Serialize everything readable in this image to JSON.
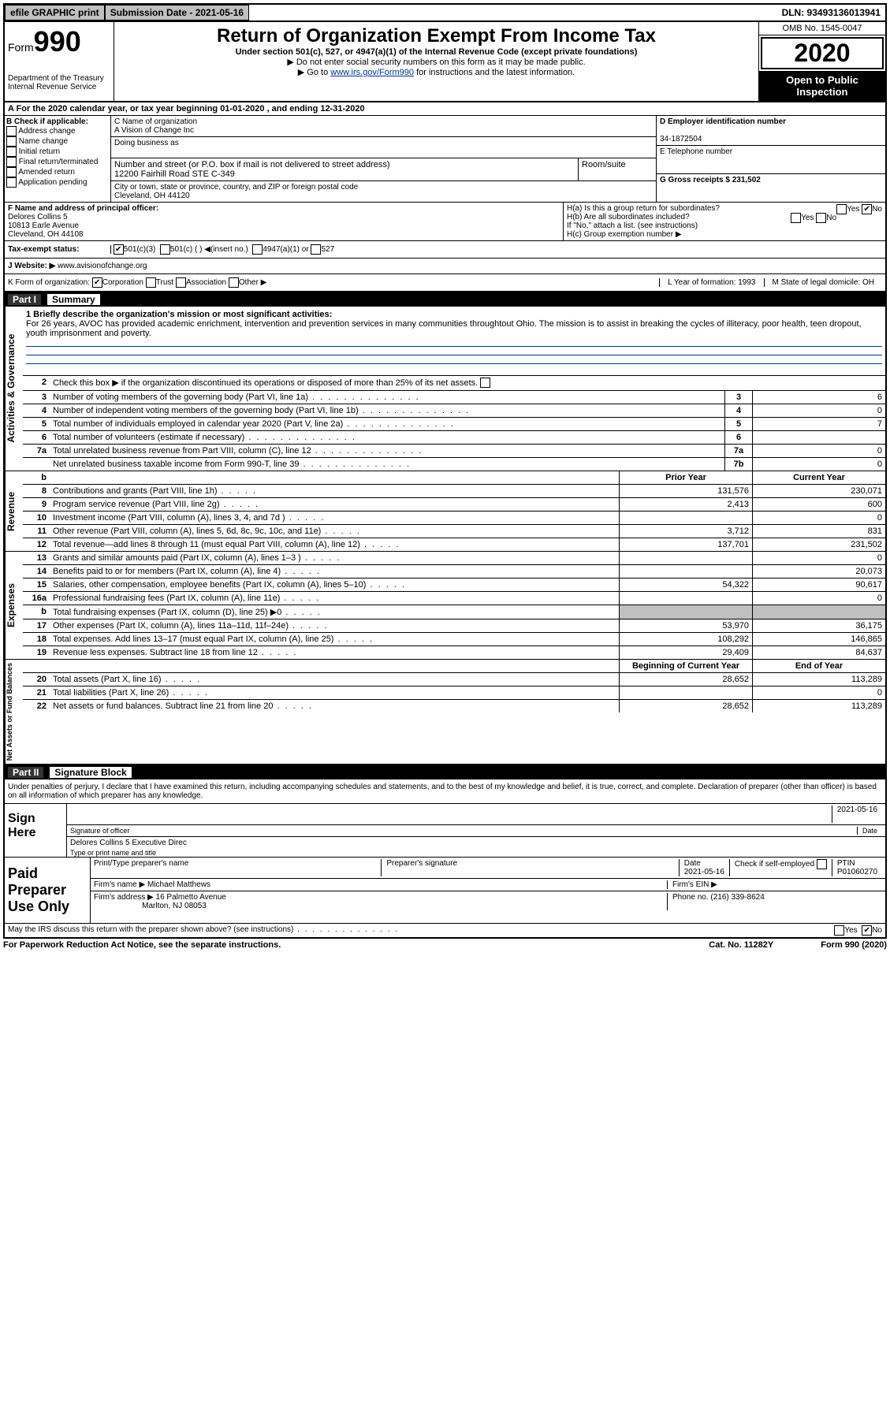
{
  "topbar": {
    "efile": "efile GRAPHIC print",
    "submission_label": "Submission Date - 2021-05-16",
    "dln": "DLN: 93493136013941"
  },
  "header": {
    "form_prefix": "Form",
    "form_number": "990",
    "dept": "Department of the Treasury",
    "irs": "Internal Revenue Service",
    "title": "Return of Organization Exempt From Income Tax",
    "subtitle": "Under section 501(c), 527, or 4947(a)(1) of the Internal Revenue Code (except private foundations)",
    "note1": "▶ Do not enter social security numbers on this form as it may be made public.",
    "note2_prefix": "▶ Go to ",
    "note2_link": "www.irs.gov/Form990",
    "note2_suffix": " for instructions and the latest information.",
    "omb": "OMB No. 1545-0047",
    "year": "2020",
    "inspect": "Open to Public Inspection"
  },
  "line_a": "A For the 2020 calendar year, or tax year beginning 01-01-2020    , and ending 12-31-2020",
  "box_b": {
    "header": "B Check if applicable:",
    "opts": [
      "Address change",
      "Name change",
      "Initial return",
      "Final return/terminated",
      "Amended return",
      "Application pending"
    ]
  },
  "box_c": {
    "name_label": "C Name of organization",
    "name": "A Vision of Change Inc",
    "dba_label": "Doing business as",
    "addr_label": "Number and street (or P.O. box if mail is not delivered to street address)",
    "room_label": "Room/suite",
    "addr": "12200 Fairhill Road STE C-349",
    "city_label": "City or town, state or province, country, and ZIP or foreign postal code",
    "city": "Cleveland, OH  44120"
  },
  "box_d": {
    "ein_label": "D Employer identification number",
    "ein": "34-1872504",
    "phone_label": "E Telephone number",
    "gross_label": "G Gross receipts $ 231,502"
  },
  "box_f": {
    "label": "F  Name and address of principal officer:",
    "name": "Delores Collins 5",
    "addr1": "10813 Earle Avenue",
    "addr2": "Cleveland, OH  44108"
  },
  "box_h": {
    "ha": "H(a)  Is this a group return for subordinates?",
    "hb": "H(b)  Are all subordinates included?",
    "hnote": "If \"No,\" attach a list. (see instructions)",
    "hc": "H(c)  Group exemption number ▶"
  },
  "tax_status": {
    "label": "Tax-exempt status:",
    "o1": "501(c)(3)",
    "o2": "501(c) (  ) ◀(insert no.)",
    "o3": "4947(a)(1) or",
    "o4": "527"
  },
  "website": {
    "label": "J Website: ▶",
    "value": "www.avisionofchange.org"
  },
  "kline": {
    "label": "K Form of organization:",
    "opts": [
      "Corporation",
      "Trust",
      "Association",
      "Other ▶"
    ],
    "l": "L Year of formation: 1993",
    "m": "M State of legal domicile: OH"
  },
  "part1": {
    "header_part": "Part I",
    "header_title": "Summary",
    "mission_label": "1  Briefly describe the organization's mission or most significant activities:",
    "mission": "For 26 years, AVOC has provided academic enrichment, intervention and prevention services in many communities throughtout Ohio. The mission is to assist in breaking the cycles of illiteracy, poor health, teen dropout, youth imprisonment and poverty.",
    "line2": "Check this box ▶       if the organization discontinued its operations or disposed of more than 25% of its net assets.",
    "vtabs": {
      "gov": "Activities & Governance",
      "rev": "Revenue",
      "exp": "Expenses",
      "net": "Net Assets or Fund Balances"
    },
    "rows_gov": [
      {
        "n": "3",
        "d": "Number of voting members of the governing body (Part VI, line 1a)",
        "b": "3",
        "v": "6"
      },
      {
        "n": "4",
        "d": "Number of independent voting members of the governing body (Part VI, line 1b)",
        "b": "4",
        "v": "0"
      },
      {
        "n": "5",
        "d": "Total number of individuals employed in calendar year 2020 (Part V, line 2a)",
        "b": "5",
        "v": "7"
      },
      {
        "n": "6",
        "d": "Total number of volunteers (estimate if necessary)",
        "b": "6",
        "v": ""
      },
      {
        "n": "7a",
        "d": "Total unrelated business revenue from Part VIII, column (C), line 12",
        "b": "7a",
        "v": "0"
      },
      {
        "n": "",
        "d": "Net unrelated business taxable income from Form 990-T, line 39",
        "b": "7b",
        "v": "0"
      }
    ],
    "col_headers": {
      "py": "Prior Year",
      "cy": "Current Year"
    },
    "rows_rev": [
      {
        "n": "8",
        "d": "Contributions and grants (Part VIII, line 1h)",
        "py": "131,576",
        "cy": "230,071"
      },
      {
        "n": "9",
        "d": "Program service revenue (Part VIII, line 2g)",
        "py": "2,413",
        "cy": "600"
      },
      {
        "n": "10",
        "d": "Investment income (Part VIII, column (A), lines 3, 4, and 7d )",
        "py": "",
        "cy": "0"
      },
      {
        "n": "11",
        "d": "Other revenue (Part VIII, column (A), lines 5, 6d, 8c, 9c, 10c, and 11e)",
        "py": "3,712",
        "cy": "831"
      },
      {
        "n": "12",
        "d": "Total revenue—add lines 8 through 11 (must equal Part VIII, column (A), line 12)",
        "py": "137,701",
        "cy": "231,502"
      }
    ],
    "rows_exp": [
      {
        "n": "13",
        "d": "Grants and similar amounts paid (Part IX, column (A), lines 1–3 )",
        "py": "",
        "cy": "0"
      },
      {
        "n": "14",
        "d": "Benefits paid to or for members (Part IX, column (A), line 4)",
        "py": "",
        "cy": "20,073"
      },
      {
        "n": "15",
        "d": "Salaries, other compensation, employee benefits (Part IX, column (A), lines 5–10)",
        "py": "54,322",
        "cy": "90,617"
      },
      {
        "n": "16a",
        "d": "Professional fundraising fees (Part IX, column (A), line 11e)",
        "py": "",
        "cy": "0"
      },
      {
        "n": "b",
        "d": "Total fundraising expenses (Part IX, column (D), line 25) ▶0",
        "py": "shade",
        "cy": "shade"
      },
      {
        "n": "17",
        "d": "Other expenses (Part IX, column (A), lines 11a–11d, 11f–24e)",
        "py": "53,970",
        "cy": "36,175"
      },
      {
        "n": "18",
        "d": "Total expenses. Add lines 13–17 (must equal Part IX, column (A), line 25)",
        "py": "108,292",
        "cy": "146,865"
      },
      {
        "n": "19",
        "d": "Revenue less expenses. Subtract line 18 from line 12",
        "py": "29,409",
        "cy": "84,637"
      }
    ],
    "col_headers2": {
      "py": "Beginning of Current Year",
      "cy": "End of Year"
    },
    "rows_net": [
      {
        "n": "20",
        "d": "Total assets (Part X, line 16)",
        "py": "28,652",
        "cy": "113,289"
      },
      {
        "n": "21",
        "d": "Total liabilities (Part X, line 26)",
        "py": "",
        "cy": "0"
      },
      {
        "n": "22",
        "d": "Net assets or fund balances. Subtract line 21 from line 20",
        "py": "28,652",
        "cy": "113,289"
      }
    ]
  },
  "part2": {
    "header_part": "Part II",
    "header_title": "Signature Block",
    "declare": "Under penalties of perjury, I declare that I have examined this return, including accompanying schedules and statements, and to the best of my knowledge and belief, it is true, correct, and complete. Declaration of preparer (other than officer) is based on all information of which preparer has any knowledge.",
    "sign_here": "Sign Here",
    "sig_officer": "Signature of officer",
    "sig_date": "2021-05-16",
    "date_label": "Date",
    "typed_name": "Delores Collins 5  Executive Direc",
    "typed_label": "Type or print name and title",
    "paid": "Paid Preparer Use Only",
    "prep_name_label": "Print/Type preparer's name",
    "prep_sig_label": "Preparer's signature",
    "prep_date_label": "Date",
    "prep_date": "2021-05-16",
    "check_self": "Check       if self-employed",
    "ptin_label": "PTIN",
    "ptin": "P01060270",
    "firm_name_label": "Firm's name    ▶",
    "firm_name": "Michael Matthews",
    "firm_ein_label": "Firm's EIN ▶",
    "firm_addr_label": "Firm's address ▶",
    "firm_addr1": "16 Palmetto Avenue",
    "firm_addr2": "Marlton, NJ  08053",
    "firm_phone_label": "Phone no. (216) 339-8624",
    "discuss": "May the IRS discuss this return with the preparer shown above? (see instructions)"
  },
  "footer": {
    "pra": "For Paperwork Reduction Act Notice, see the separate instructions.",
    "cat": "Cat. No. 11282Y",
    "form": "Form 990 (2020)"
  },
  "yesno": {
    "yes": "Yes",
    "no": "No"
  }
}
